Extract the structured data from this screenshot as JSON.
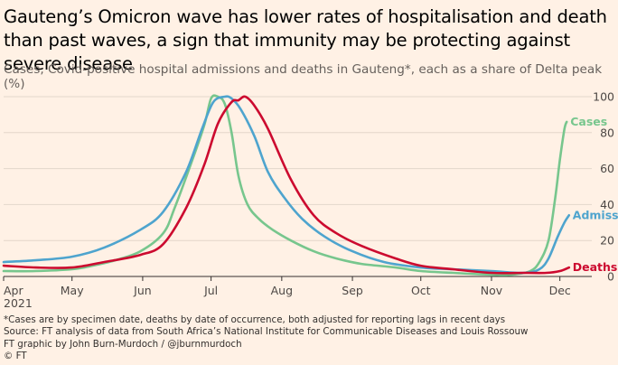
{
  "title": "Gauteng’s Omicron wave has lower rates of hospitalisation and death than past waves, a sign that immunity may be protecting against severe disease",
  "subtitle": "Cases, Covid-positive hospital admissions and deaths in Gauteng*, each as a share of Delta peak (%)",
  "footnotes": [
    "*Cases are by specimen date, deaths by date of occurrence, both adjusted for reporting lags in recent days",
    "Source: FT analysis of data from South Africa’s National Institute for Communicable Diseases and Louis Rossouw",
    "FT graphic by John Burn-Murdoch / @jburnmurdoch",
    "© FT"
  ],
  "chart_data": {
    "type": "line",
    "x_ticks": [
      "Apr",
      "May",
      "Jun",
      "Jul",
      "Aug",
      "Sep",
      "Oct",
      "Nov",
      "Dec"
    ],
    "x_year_label": "2021",
    "ylim": [
      0,
      100
    ],
    "y_ticks": [
      "0",
      "20",
      "40",
      "60",
      "80",
      "100"
    ],
    "grid": true,
    "series": [
      {
        "name": "Cases",
        "color": "#77c68d",
        "points": [
          [
            "2021-04-01",
            3
          ],
          [
            "2021-04-15",
            3
          ],
          [
            "2021-05-01",
            4
          ],
          [
            "2021-05-10",
            6
          ],
          [
            "2021-05-20",
            9
          ],
          [
            "2021-05-31",
            14
          ],
          [
            "2021-06-10",
            24
          ],
          [
            "2021-06-15",
            38
          ],
          [
            "2021-06-22",
            62
          ],
          [
            "2021-06-28",
            84
          ],
          [
            "2021-07-01",
            99
          ],
          [
            "2021-07-04",
            100
          ],
          [
            "2021-07-07",
            96
          ],
          [
            "2021-07-10",
            80
          ],
          [
            "2021-07-13",
            56
          ],
          [
            "2021-07-17",
            40
          ],
          [
            "2021-07-22",
            32
          ],
          [
            "2021-07-28",
            26
          ],
          [
            "2021-08-05",
            20
          ],
          [
            "2021-08-15",
            14
          ],
          [
            "2021-08-25",
            10
          ],
          [
            "2021-09-05",
            7
          ],
          [
            "2021-09-20",
            5
          ],
          [
            "2021-10-01",
            3
          ],
          [
            "2021-10-15",
            2
          ],
          [
            "2021-11-01",
            1
          ],
          [
            "2021-11-10",
            1
          ],
          [
            "2021-11-18",
            3
          ],
          [
            "2021-11-22",
            8
          ],
          [
            "2021-11-26",
            20
          ],
          [
            "2021-11-29",
            44
          ],
          [
            "2021-12-01",
            65
          ],
          [
            "2021-12-03",
            82
          ],
          [
            "2021-12-04",
            86
          ]
        ]
      },
      {
        "name": "Admissions",
        "color": "#4ea4ce",
        "points": [
          [
            "2021-04-01",
            8
          ],
          [
            "2021-04-15",
            9
          ],
          [
            "2021-05-01",
            11
          ],
          [
            "2021-05-15",
            16
          ],
          [
            "2021-05-31",
            26
          ],
          [
            "2021-06-10",
            36
          ],
          [
            "2021-06-20",
            58
          ],
          [
            "2021-06-27",
            82
          ],
          [
            "2021-07-02",
            97
          ],
          [
            "2021-07-07",
            100
          ],
          [
            "2021-07-10",
            99
          ],
          [
            "2021-07-14",
            93
          ],
          [
            "2021-07-20",
            78
          ],
          [
            "2021-07-26",
            58
          ],
          [
            "2021-08-02",
            44
          ],
          [
            "2021-08-10",
            32
          ],
          [
            "2021-08-20",
            22
          ],
          [
            "2021-09-01",
            14
          ],
          [
            "2021-09-15",
            8
          ],
          [
            "2021-10-01",
            5
          ],
          [
            "2021-10-15",
            4
          ],
          [
            "2021-11-01",
            3
          ],
          [
            "2021-11-15",
            2
          ],
          [
            "2021-11-22",
            4
          ],
          [
            "2021-11-26",
            10
          ],
          [
            "2021-11-30",
            22
          ],
          [
            "2021-12-03",
            30
          ],
          [
            "2021-12-05",
            34
          ]
        ]
      },
      {
        "name": "Deaths",
        "color": "#cc0a2f",
        "points": [
          [
            "2021-04-01",
            6
          ],
          [
            "2021-04-15",
            5
          ],
          [
            "2021-05-01",
            5
          ],
          [
            "2021-05-15",
            8
          ],
          [
            "2021-05-31",
            12
          ],
          [
            "2021-06-10",
            18
          ],
          [
            "2021-06-20",
            38
          ],
          [
            "2021-06-28",
            62
          ],
          [
            "2021-07-04",
            85
          ],
          [
            "2021-07-10",
            97
          ],
          [
            "2021-07-13",
            98
          ],
          [
            "2021-07-16",
            100
          ],
          [
            "2021-07-20",
            95
          ],
          [
            "2021-07-26",
            82
          ],
          [
            "2021-08-05",
            54
          ],
          [
            "2021-08-15",
            34
          ],
          [
            "2021-08-25",
            24
          ],
          [
            "2021-09-05",
            17
          ],
          [
            "2021-09-20",
            10
          ],
          [
            "2021-10-01",
            6
          ],
          [
            "2021-10-15",
            4
          ],
          [
            "2021-11-01",
            2
          ],
          [
            "2021-11-15",
            2
          ],
          [
            "2021-11-25",
            2
          ],
          [
            "2021-12-01",
            3
          ],
          [
            "2021-12-05",
            5
          ]
        ]
      }
    ]
  }
}
